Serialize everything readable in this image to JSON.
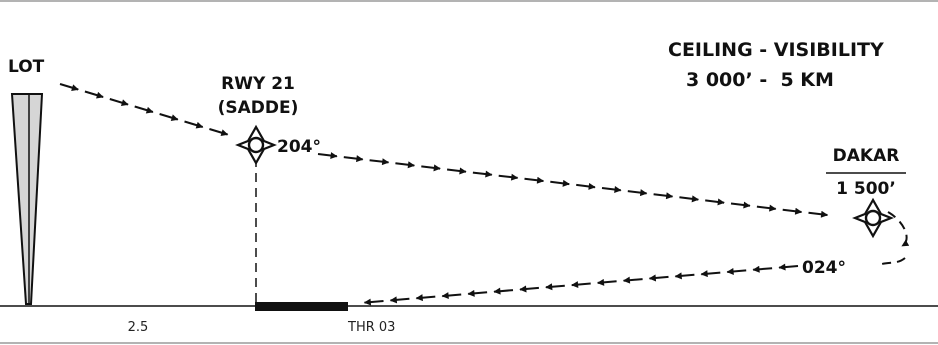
{
  "diagram": {
    "lot_label": "LOT",
    "rwy_label": "RWY 21",
    "rwy_fix": "(SADDE)",
    "outbound_heading": "204°",
    "dakar_label": "DAKAR",
    "dakar_altitude": "1 500’",
    "ceiling_title": "CEILING - VISIBILITY",
    "ceiling_values": "3 000’ -  5 KM",
    "inbound_heading": "024°",
    "distance_label": "2.5",
    "threshold_label": "THR 03"
  },
  "colors": {
    "ink": "#111111",
    "rule": "#9a9a9a",
    "tower_fill": "#d6d6d6"
  }
}
